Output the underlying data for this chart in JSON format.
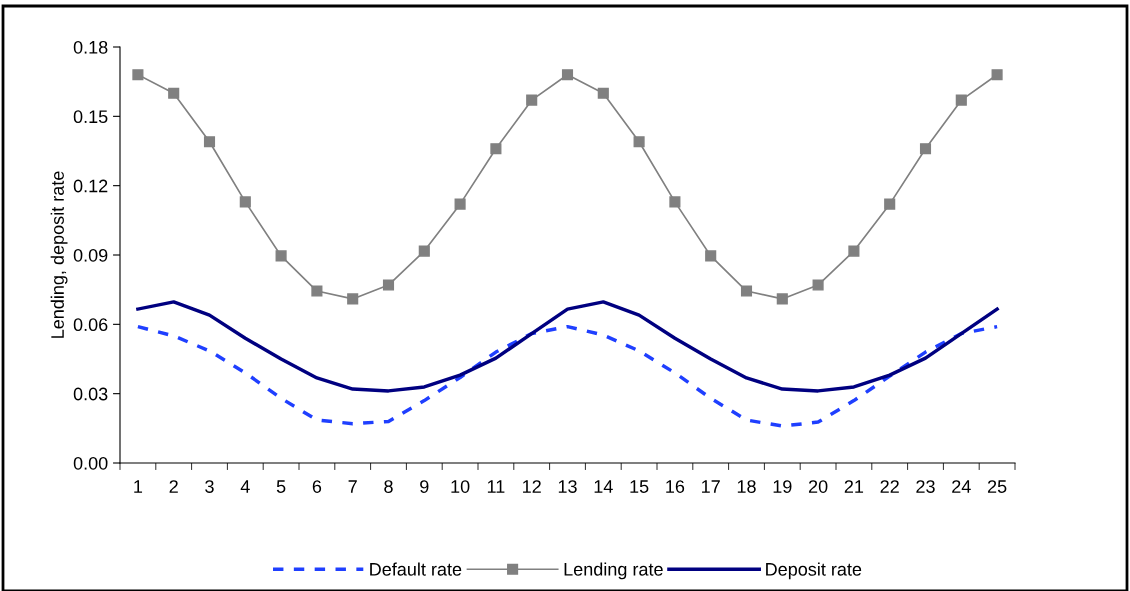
{
  "chart_data": {
    "type": "line",
    "ylabel": "Lending, deposit rate",
    "categories": [
      "1",
      "2",
      "3",
      "4",
      "5",
      "6",
      "7",
      "8",
      "9",
      "10",
      "11",
      "12",
      "13",
      "14",
      "15",
      "16",
      "17",
      "18",
      "19",
      "20",
      "21",
      "22",
      "23",
      "24",
      "25"
    ],
    "series": [
      {
        "name": "Default rate",
        "color": "#1f3fff",
        "line_style": "dashed",
        "marker": "none",
        "values": [
          0.059,
          0.055,
          0.0485,
          0.039,
          0.028,
          0.0186,
          0.017,
          0.018,
          0.027,
          0.037,
          0.048,
          0.056,
          0.059,
          0.0554,
          0.0485,
          0.039,
          0.028,
          0.0186,
          0.016,
          0.0177,
          0.027,
          0.0376,
          0.048,
          0.056,
          0.059
        ]
      },
      {
        "name": "Lending rate",
        "color": "#808080",
        "line_style": "solid",
        "marker": "square",
        "values": [
          0.168,
          0.16,
          0.139,
          0.113,
          0.0896,
          0.0744,
          0.071,
          0.077,
          0.0917,
          0.112,
          0.136,
          0.157,
          0.168,
          0.16,
          0.139,
          0.113,
          0.0896,
          0.0744,
          0.071,
          0.077,
          0.0917,
          0.112,
          0.136,
          0.157,
          0.168
        ]
      },
      {
        "name": "Deposit rate",
        "color": "#000080",
        "line_style": "solid",
        "marker": "none",
        "values": [
          0.0666,
          0.0697,
          0.064,
          0.054,
          0.045,
          0.0368,
          0.032,
          0.0312,
          0.0329,
          0.038,
          0.0454,
          0.056,
          0.0666,
          0.0697,
          0.064,
          0.054,
          0.045,
          0.0368,
          0.032,
          0.0312,
          0.0329,
          0.038,
          0.0454,
          0.056,
          0.0666
        ]
      }
    ],
    "ylim": [
      0,
      0.18
    ],
    "yticks": [
      {
        "value": 0,
        "label": "0.00"
      },
      {
        "value": 0.03,
        "label": "0.03"
      },
      {
        "value": 0.06,
        "label": "0.06"
      },
      {
        "value": 0.09,
        "label": "0.09"
      },
      {
        "value": 0.12,
        "label": "0.12"
      },
      {
        "value": 0.15,
        "label": "0.15"
      },
      {
        "value": 0.18,
        "label": "0.18"
      }
    ],
    "grid": false,
    "legend": "bottom"
  }
}
